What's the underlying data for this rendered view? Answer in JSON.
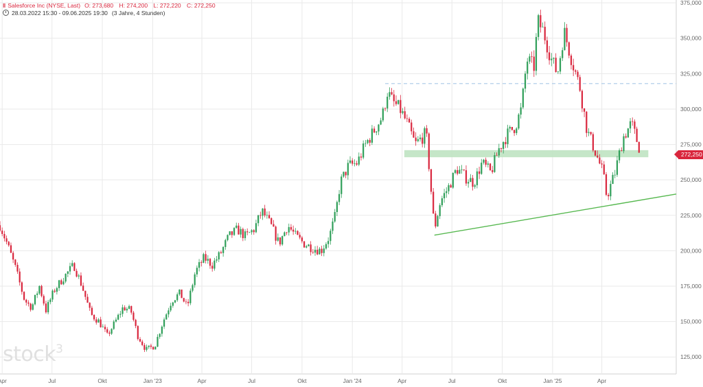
{
  "header": {
    "symbol_icon": "candlestick-icon",
    "title": "Salesforce Inc (NYSE, Last)",
    "open": "O: 273,680",
    "high": "H: 274,200",
    "low": "L: 272,220",
    "close": "C: 272,250",
    "range": "28.03.2022 15:30 - 09.06.2025 19:30",
    "range_note": "(3 Jahre, 4 Stunden)"
  },
  "watermark": {
    "text": "stock",
    "sup": "3"
  },
  "last_price": "272,250",
  "colors": {
    "up": "#2e9e58",
    "down": "#d9263d",
    "grid": "#e9e9e9",
    "support_zone": "#bfe3c2",
    "trendline": "#56b84f",
    "resistance": "#a9c8e6"
  },
  "chart_data": {
    "type": "candlestick",
    "y_ticks": [
      "125,000",
      "150,000",
      "175,000",
      "200,000",
      "225,000",
      "250,000",
      "275,000",
      "300,000",
      "325,000",
      "350,000",
      "375,000"
    ],
    "y_tick_values": [
      125,
      150,
      175,
      200,
      225,
      250,
      275,
      300,
      325,
      350,
      375
    ],
    "ylim": [
      113,
      377
    ],
    "x_ticks": [
      "Apr",
      "Jul",
      "Okt",
      "Jan '23",
      "Apr",
      "Jul",
      "Okt",
      "Jan '24",
      "Apr",
      "Jul",
      "Okt",
      "Jan '25",
      "Apr"
    ],
    "x_tick_dates": [
      "2022-04-01",
      "2022-07-01",
      "2022-10-01",
      "2023-01-01",
      "2023-04-01",
      "2023-07-01",
      "2023-10-01",
      "2024-01-01",
      "2024-04-01",
      "2024-07-01",
      "2024-10-01",
      "2025-01-01",
      "2025-04-01"
    ],
    "xlim": [
      "2022-03-28",
      "2025-08-15"
    ],
    "price_path": [
      [
        "2022-03-28",
        218
      ],
      [
        "2022-04-10",
        205
      ],
      [
        "2022-04-25",
        188
      ],
      [
        "2022-05-12",
        165
      ],
      [
        "2022-05-25",
        160
      ],
      [
        "2022-06-08",
        175
      ],
      [
        "2022-06-20",
        158
      ],
      [
        "2022-07-05",
        172
      ],
      [
        "2022-07-20",
        180
      ],
      [
        "2022-08-10",
        190
      ],
      [
        "2022-08-25",
        175
      ],
      [
        "2022-09-10",
        155
      ],
      [
        "2022-09-25",
        150
      ],
      [
        "2022-10-10",
        140
      ],
      [
        "2022-10-25",
        150
      ],
      [
        "2022-11-08",
        160
      ],
      [
        "2022-11-22",
        158
      ],
      [
        "2022-12-05",
        140
      ],
      [
        "2022-12-20",
        130
      ],
      [
        "2023-01-05",
        133
      ],
      [
        "2023-01-20",
        150
      ],
      [
        "2023-02-05",
        165
      ],
      [
        "2023-02-20",
        170
      ],
      [
        "2023-03-05",
        160
      ],
      [
        "2023-03-20",
        185
      ],
      [
        "2023-04-05",
        195
      ],
      [
        "2023-04-20",
        190
      ],
      [
        "2023-05-05",
        198
      ],
      [
        "2023-05-20",
        210
      ],
      [
        "2023-06-05",
        215
      ],
      [
        "2023-06-20",
        210
      ],
      [
        "2023-07-05",
        215
      ],
      [
        "2023-07-20",
        228
      ],
      [
        "2023-08-05",
        218
      ],
      [
        "2023-08-20",
        205
      ],
      [
        "2023-09-05",
        218
      ],
      [
        "2023-09-20",
        210
      ],
      [
        "2023-10-05",
        205
      ],
      [
        "2023-10-20",
        202
      ],
      [
        "2023-11-05",
        200
      ],
      [
        "2023-11-20",
        210
      ],
      [
        "2023-12-01",
        225
      ],
      [
        "2023-12-10",
        248
      ],
      [
        "2023-12-25",
        260
      ],
      [
        "2024-01-10",
        262
      ],
      [
        "2024-01-25",
        275
      ],
      [
        "2024-02-10",
        285
      ],
      [
        "2024-02-25",
        295
      ],
      [
        "2024-03-05",
        312
      ],
      [
        "2024-03-15",
        305
      ],
      [
        "2024-03-28",
        300
      ],
      [
        "2024-04-10",
        290
      ],
      [
        "2024-04-25",
        275
      ],
      [
        "2024-05-15",
        283
      ],
      [
        "2024-05-30",
        215
      ],
      [
        "2024-06-10",
        235
      ],
      [
        "2024-06-25",
        245
      ],
      [
        "2024-07-10",
        258
      ],
      [
        "2024-07-25",
        252
      ],
      [
        "2024-08-10",
        248
      ],
      [
        "2024-08-25",
        262
      ],
      [
        "2024-09-10",
        255
      ],
      [
        "2024-09-25",
        272
      ],
      [
        "2024-10-10",
        282
      ],
      [
        "2024-10-25",
        288
      ],
      [
        "2024-11-05",
        300
      ],
      [
        "2024-11-15",
        335
      ],
      [
        "2024-11-28",
        330
      ],
      [
        "2024-12-05",
        362
      ],
      [
        "2024-12-15",
        355
      ],
      [
        "2024-12-30",
        335
      ],
      [
        "2025-01-10",
        325
      ],
      [
        "2025-01-22",
        355
      ],
      [
        "2025-02-05",
        335
      ],
      [
        "2025-02-20",
        315
      ],
      [
        "2025-03-05",
        285
      ],
      [
        "2025-03-20",
        270
      ],
      [
        "2025-04-03",
        255
      ],
      [
        "2025-04-10",
        238
      ],
      [
        "2025-04-25",
        255
      ],
      [
        "2025-05-10",
        280
      ],
      [
        "2025-05-25",
        290
      ],
      [
        "2025-06-09",
        272
      ]
    ],
    "annotations": {
      "resistance_level": 318,
      "resistance_from": "2024-03-01",
      "support_zone": [
        266,
        271
      ],
      "support_zone_from": "2024-04-05",
      "support_zone_to": "2025-06-25",
      "trendline": [
        [
          "2024-05-30",
          211
        ],
        [
          "2025-08-15",
          240
        ]
      ]
    }
  }
}
